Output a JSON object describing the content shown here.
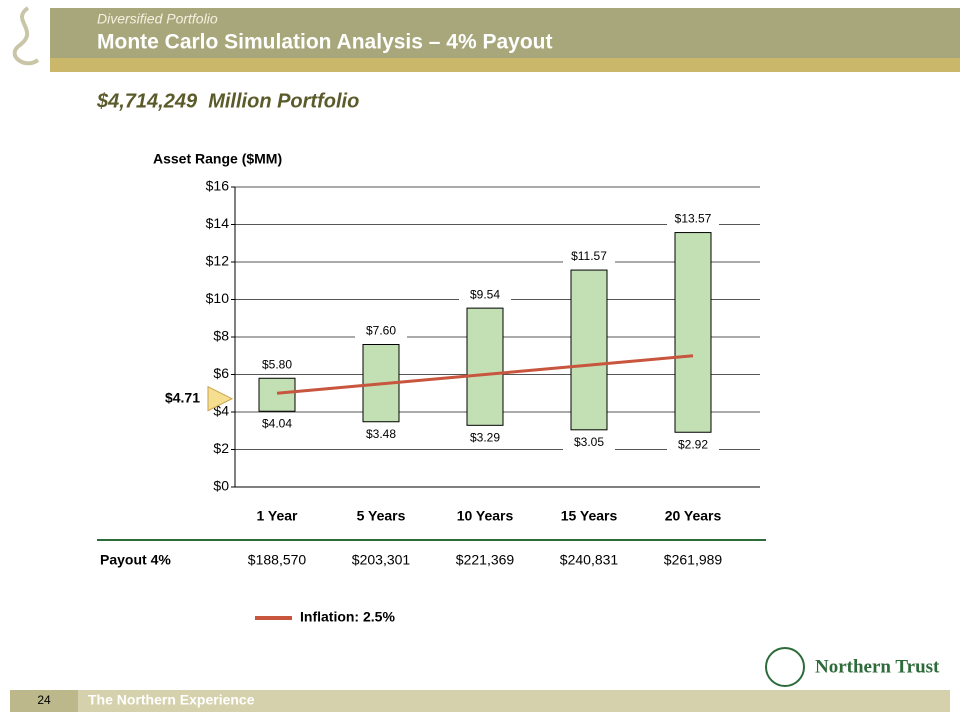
{
  "header": {
    "subtitle": "Diversified Portfolio",
    "title": "Monte Carlo Simulation Analysis – 4% Payout",
    "heading": "$4,714,249  Million Portfolio"
  },
  "chart_data": {
    "type": "range_bar",
    "title": "Asset Range ($MM)",
    "categories": [
      "1 Year",
      "5 Years",
      "10 Years",
      "15 Years",
      "20 Years"
    ],
    "high": {
      "values": [
        5.8,
        7.6,
        9.54,
        11.57,
        13.57
      ],
      "value_labels": [
        "$5.80",
        "$7.60",
        "$9.54",
        "$11.57",
        "$13.57"
      ]
    },
    "low": {
      "values": [
        4.04,
        3.48,
        3.29,
        3.05,
        2.92
      ],
      "value_labels": [
        "$4.04",
        "$3.48",
        "$3.29",
        "$3.05",
        "$2.92"
      ]
    },
    "color": "#c3e0b5",
    "line": {
      "name": "Inflation: 2.5%",
      "color": "#c8553d",
      "values": [
        5.0,
        5.5,
        6.0,
        6.5,
        7.0
      ]
    },
    "start_marker": {
      "value": 4.71,
      "label": "$4.71"
    },
    "ylim": [
      0,
      16
    ],
    "yticks": [
      {
        "value": 0,
        "label": "$0"
      },
      {
        "value": 2,
        "label": "$2"
      },
      {
        "value": 4,
        "label": "$4"
      },
      {
        "value": 6,
        "label": "$6"
      },
      {
        "value": 8,
        "label": "$8"
      },
      {
        "value": 10,
        "label": "$10"
      },
      {
        "value": 12,
        "label": "$12"
      },
      {
        "value": 14,
        "label": "$14"
      },
      {
        "value": 16,
        "label": "$16"
      }
    ],
    "grid": true
  },
  "payout": {
    "label": "Payout 4%",
    "values": [
      "$188,570",
      "$203,301",
      "$221,369",
      "$240,831",
      "$261,989"
    ]
  },
  "footer": {
    "page": "24",
    "text": "The Northern Experience",
    "logo": "Northern Trust"
  }
}
